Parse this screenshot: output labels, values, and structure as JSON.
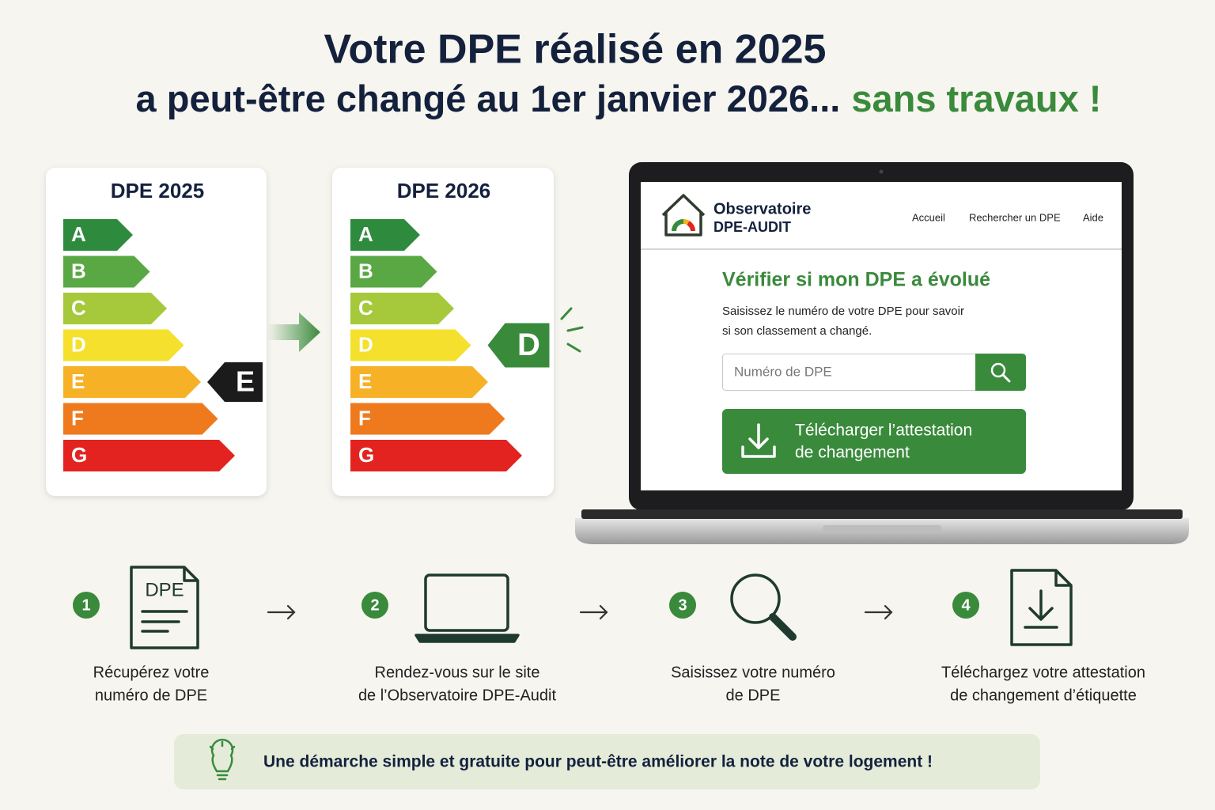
{
  "header": {
    "title_line1": "Votre DPE réalisé en 2025",
    "title_line2": "a peut-être changé au 1er janvier 2026...",
    "title_highlight": "sans travaux !"
  },
  "scales": [
    {
      "title": "DPE 2025",
      "classes": [
        "A",
        "B",
        "C",
        "D",
        "E",
        "F",
        "G"
      ],
      "rating": "E"
    },
    {
      "title": "DPE 2026",
      "classes": [
        "A",
        "B",
        "C",
        "D",
        "E",
        "F",
        "G"
      ],
      "rating": "D"
    }
  ],
  "website": {
    "brand_line1": "Observatoire",
    "brand_line2": "DPE-AUDIT",
    "nav": [
      "Accueil",
      "Rechercher un DPE",
      "Aide"
    ],
    "heading": "Vérifier si mon DPE a évolué",
    "description_line1": "Saisissez le numéro de votre DPE pour savoir",
    "description_line2": "si son classement a changé.",
    "search_placeholder": "Numéro de DPE",
    "download_button_line1": "Télécharger l’attestation",
    "download_button_line2": "de changement"
  },
  "steps": [
    {
      "number": "1",
      "icon_label": "DPE",
      "text_line1": "Récupérez votre",
      "text_line2": "numéro de DPE"
    },
    {
      "number": "2",
      "text_line1": "Rendez-vous sur le site",
      "text_line2": "de l’Observatoire DPE-Audit"
    },
    {
      "number": "3",
      "text_line1": "Saisissez votre numéro",
      "text_line2": "de DPE"
    },
    {
      "number": "4",
      "text_line1": "Téléchargez votre attestation",
      "text_line2": "de changement d’étiquette"
    }
  ],
  "footer_note": "Une démarche simple et gratuite pour peut-être améliorer la note de votre logement !"
}
